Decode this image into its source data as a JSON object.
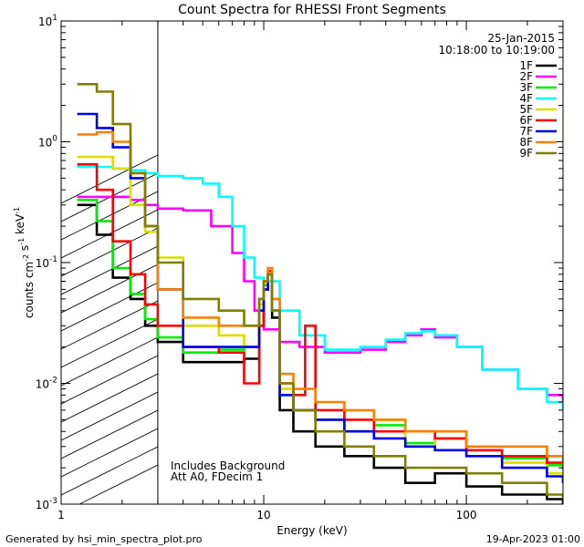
{
  "chart_data": {
    "type": "line",
    "title": "Count Spectra for RHESSI Front Segments",
    "xlabel": "Energy (keV)",
    "ylabel": "counts cm^-2 s^-1 keV^-1",
    "xscale": "log",
    "yscale": "log",
    "xlim": [
      1,
      300
    ],
    "ylim": [
      0.001,
      10
    ],
    "x_ticks": [
      "1",
      "10",
      "100"
    ],
    "y_ticks": [
      "10^-3",
      "10^-2",
      "10^-1",
      "10^0",
      "10^1"
    ],
    "legend_position": "top-right",
    "date": "25-Jan-2015",
    "time_range": "10:18:00 to 10:19:00",
    "hatched_region_upper_keV": 3,
    "annotations": [
      "Includes Background",
      "Att A0, FDecim 1"
    ],
    "footer_left": "Generated by hsi_min_spectra_plot.pro",
    "footer_right": "19-Apr-2023 01:00",
    "series": [
      {
        "name": "1F",
        "color": "#000000",
        "x": [
          1.2,
          1.5,
          1.8,
          2.2,
          2.6,
          3.0,
          4.0,
          6.0,
          8.0,
          9.5,
          10.0,
          10.5,
          11.0,
          12.0,
          14.0,
          18.0,
          25.0,
          35.0,
          50.0,
          70.0,
          100.0,
          150.0,
          250.0,
          300.0
        ],
        "y": [
          0.3,
          0.17,
          0.075,
          0.05,
          0.03,
          0.022,
          0.015,
          0.015,
          0.016,
          0.03,
          0.06,
          0.08,
          0.035,
          0.006,
          0.004,
          0.003,
          0.0025,
          0.002,
          0.0015,
          0.0018,
          0.0014,
          0.0012,
          0.0011,
          0.001
        ]
      },
      {
        "name": "2F",
        "color": "#ff00ff",
        "x": [
          1.2,
          1.5,
          1.8,
          2.2,
          2.6,
          3.0,
          4.0,
          5.5,
          7.0,
          8.0,
          9.0,
          10.0,
          12.0,
          15.0,
          20.0,
          30.0,
          40.0,
          50.0,
          60.0,
          70.0,
          90.0,
          120.0,
          180.0,
          250.0,
          300.0
        ],
        "y": [
          0.35,
          0.35,
          0.35,
          0.33,
          0.3,
          0.28,
          0.27,
          0.2,
          0.12,
          0.07,
          0.04,
          0.028,
          0.022,
          0.02,
          0.018,
          0.019,
          0.022,
          0.025,
          0.028,
          0.024,
          0.02,
          0.013,
          0.009,
          0.008,
          0.007
        ]
      },
      {
        "name": "3F",
        "color": "#00ee00",
        "x": [
          1.2,
          1.5,
          1.8,
          2.2,
          2.6,
          3.0,
          4.0,
          6.0,
          8.0,
          9.5,
          10.0,
          10.5,
          11.0,
          12.0,
          14.0,
          18.0,
          25.0,
          35.0,
          50.0,
          70.0,
          100.0,
          150.0,
          250.0,
          300.0
        ],
        "y": [
          0.33,
          0.22,
          0.09,
          0.055,
          0.034,
          0.024,
          0.018,
          0.019,
          0.02,
          0.04,
          0.065,
          0.085,
          0.04,
          0.008,
          0.006,
          0.005,
          0.004,
          0.0045,
          0.0032,
          0.0035,
          0.0028,
          0.0024,
          0.0021,
          0.0019
        ]
      },
      {
        "name": "4F",
        "color": "#00ffff",
        "x": [
          1.2,
          1.5,
          1.8,
          2.2,
          2.6,
          3.0,
          4.0,
          5.0,
          6.0,
          7.0,
          8.0,
          9.0,
          10.0,
          12.0,
          15.0,
          20.0,
          30.0,
          40.0,
          50.0,
          60.0,
          70.0,
          90.0,
          120.0,
          180.0,
          250.0,
          300.0
        ],
        "y": [
          0.62,
          0.62,
          0.6,
          0.58,
          0.55,
          0.52,
          0.5,
          0.45,
          0.35,
          0.2,
          0.11,
          0.075,
          0.07,
          0.04,
          0.025,
          0.019,
          0.02,
          0.023,
          0.026,
          0.027,
          0.025,
          0.02,
          0.013,
          0.009,
          0.007,
          0.006
        ]
      },
      {
        "name": "5F",
        "color": "#dddd00",
        "x": [
          1.2,
          1.5,
          1.8,
          2.2,
          2.6,
          3.0,
          4.0,
          6.0,
          8.0,
          9.5,
          10.0,
          10.5,
          11.0,
          12.0,
          14.0,
          18.0,
          25.0,
          35.0,
          50.0,
          70.0,
          100.0,
          150.0,
          250.0,
          300.0
        ],
        "y": [
          0.75,
          0.75,
          0.6,
          0.3,
          0.18,
          0.11,
          0.03,
          0.025,
          0.02,
          0.045,
          0.07,
          0.085,
          0.05,
          0.009,
          0.006,
          0.005,
          0.004,
          0.005,
          0.003,
          0.0035,
          0.0025,
          0.0022,
          0.0018,
          0.0015
        ]
      },
      {
        "name": "6F",
        "color": "#ff0000",
        "x": [
          1.2,
          1.5,
          1.8,
          2.2,
          2.6,
          3.0,
          4.0,
          6.0,
          8.0,
          9.5,
          10.0,
          10.5,
          11.0,
          12.0,
          14.0,
          16.0,
          18.0,
          25.0,
          35.0,
          50.0,
          70.0,
          100.0,
          150.0,
          250.0,
          300.0
        ],
        "y": [
          0.65,
          0.4,
          0.15,
          0.08,
          0.045,
          0.03,
          0.02,
          0.018,
          0.01,
          0.03,
          0.06,
          0.085,
          0.04,
          0.01,
          0.008,
          0.03,
          0.006,
          0.005,
          0.004,
          0.004,
          0.0035,
          0.0028,
          0.0025,
          0.0022,
          0.002
        ]
      },
      {
        "name": "7F",
        "color": "#0000ee",
        "x": [
          1.2,
          1.5,
          1.8,
          2.2,
          2.6,
          3.0,
          4.0,
          6.0,
          8.0,
          9.5,
          10.0,
          10.5,
          11.0,
          12.0,
          14.0,
          18.0,
          25.0,
          35.0,
          50.0,
          70.0,
          100.0,
          150.0,
          250.0,
          300.0
        ],
        "y": [
          1.7,
          1.3,
          0.9,
          0.5,
          0.2,
          0.06,
          0.02,
          0.02,
          0.02,
          0.04,
          0.06,
          0.08,
          0.04,
          0.008,
          0.006,
          0.005,
          0.004,
          0.0035,
          0.003,
          0.0028,
          0.0025,
          0.002,
          0.0017,
          0.0015
        ]
      },
      {
        "name": "8F",
        "color": "#ff8000",
        "x": [
          1.2,
          1.5,
          1.8,
          2.2,
          2.6,
          3.0,
          4.0,
          6.0,
          8.0,
          9.5,
          10.0,
          10.5,
          11.0,
          12.0,
          14.0,
          18.0,
          25.0,
          35.0,
          50.0,
          70.0,
          100.0,
          150.0,
          250.0,
          300.0
        ],
        "y": [
          1.15,
          1.2,
          1.0,
          0.55,
          0.2,
          0.06,
          0.035,
          0.03,
          0.03,
          0.05,
          0.07,
          0.09,
          0.05,
          0.012,
          0.009,
          0.007,
          0.006,
          0.005,
          0.004,
          0.004,
          0.003,
          0.003,
          0.0025,
          0.002
        ]
      },
      {
        "name": "9F",
        "color": "#808000",
        "x": [
          1.2,
          1.5,
          1.8,
          2.2,
          2.6,
          3.0,
          4.0,
          6.0,
          8.0,
          9.5,
          10.0,
          10.5,
          11.0,
          12.0,
          14.0,
          18.0,
          25.0,
          35.0,
          50.0,
          70.0,
          100.0,
          150.0,
          250.0,
          300.0
        ],
        "y": [
          3.0,
          2.6,
          1.4,
          0.55,
          0.2,
          0.1,
          0.05,
          0.04,
          0.03,
          0.05,
          0.07,
          0.08,
          0.04,
          0.01,
          0.006,
          0.004,
          0.003,
          0.0025,
          0.002,
          0.002,
          0.0018,
          0.0015,
          0.0012,
          0.0011
        ]
      }
    ]
  }
}
